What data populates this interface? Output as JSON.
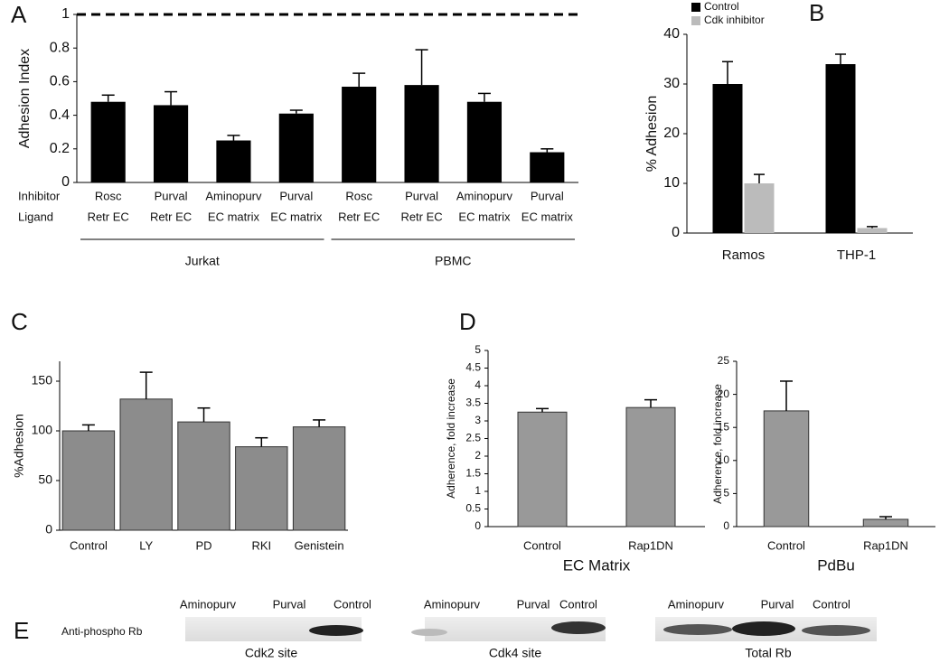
{
  "chart_data": [
    {
      "type": "bar",
      "panel": "A",
      "ylabel": "Adhesion Index",
      "ylim": [
        0,
        1
      ],
      "yticks": [
        0,
        0.2,
        0.4,
        0.6,
        0.8,
        1
      ],
      "reference_line": 1,
      "row_labels": [
        "Inhibitor",
        "Ligand"
      ],
      "categories": [
        "Rosc",
        "Purval",
        "Aminopurv",
        "Purval",
        "Rosc",
        "Purval",
        "Aminopurv",
        "Purval"
      ],
      "ligands": [
        "Retr EC",
        "Retr EC",
        "EC matrix",
        "EC matrix",
        "Retr EC",
        "Retr EC",
        "EC matrix",
        "EC matrix"
      ],
      "groups": [
        "Jurkat",
        "PBMC"
      ],
      "values": [
        0.48,
        0.46,
        0.25,
        0.41,
        0.57,
        0.58,
        0.48,
        0.18
      ],
      "errors": [
        0.04,
        0.08,
        0.03,
        0.02,
        0.08,
        0.21,
        0.05,
        0.02
      ],
      "color": "#000000"
    },
    {
      "type": "grouped_bar",
      "panel": "B",
      "ylabel": "% Adhesion",
      "ylim": [
        0,
        40
      ],
      "yticks": [
        0,
        10,
        20,
        30,
        40
      ],
      "legend": "upper left",
      "categories": [
        "Ramos",
        "THP-1"
      ],
      "series": [
        {
          "name": "Control",
          "color": "#000000",
          "values": [
            30,
            34
          ],
          "errors": [
            4.5,
            2
          ]
        },
        {
          "name": "Cdk inhibitor",
          "color": "#bbbbbb",
          "values": [
            10,
            1
          ],
          "errors": [
            1.8,
            0.3
          ]
        }
      ]
    },
    {
      "type": "bar",
      "panel": "C",
      "ylabel": "%Adhesion",
      "ylim": [
        0,
        170
      ],
      "yticks": [
        0,
        50,
        100,
        150
      ],
      "categories": [
        "Control",
        "LY",
        "PD",
        "RKI",
        "Genistein"
      ],
      "values": [
        100,
        132,
        109,
        84,
        104
      ],
      "errors": [
        6,
        27,
        14,
        9,
        7
      ],
      "color": "#8c8c8c"
    },
    {
      "type": "bar",
      "panel": "D",
      "title": "EC Matrix",
      "ylabel": "Adherence, fold increase",
      "ylim": [
        0,
        5
      ],
      "yticks": [
        0,
        0.5,
        1,
        1.5,
        2,
        2.5,
        3,
        3.5,
        4,
        4.5,
        5
      ],
      "categories": [
        "Control",
        "Rap1DN"
      ],
      "values": [
        3.25,
        3.38
      ],
      "errors": [
        0.1,
        0.22
      ],
      "color": "#999999"
    },
    {
      "type": "bar",
      "title": "PdBu",
      "ylabel": "Adherence, fold increase",
      "ylim": [
        0,
        25
      ],
      "yticks": [
        0,
        5,
        10,
        15,
        20,
        25
      ],
      "categories": [
        "Control",
        "Rap1DN"
      ],
      "values": [
        17.5,
        1.1
      ],
      "errors": [
        4.5,
        0.4
      ],
      "color": "#999999"
    }
  ],
  "blots": {
    "panel": "E",
    "row_label": "Anti-phospho Rb",
    "images": [
      {
        "lanes": [
          "Aminopurv",
          "Purval",
          "Control"
        ],
        "caption": "Cdk2 site"
      },
      {
        "lanes": [
          "Aminopurv",
          "Purval",
          "Control"
        ],
        "caption": "Cdk4 site"
      },
      {
        "lanes": [
          "Aminopurv",
          "Purval",
          "Control"
        ],
        "caption": "Total Rb"
      }
    ]
  }
}
